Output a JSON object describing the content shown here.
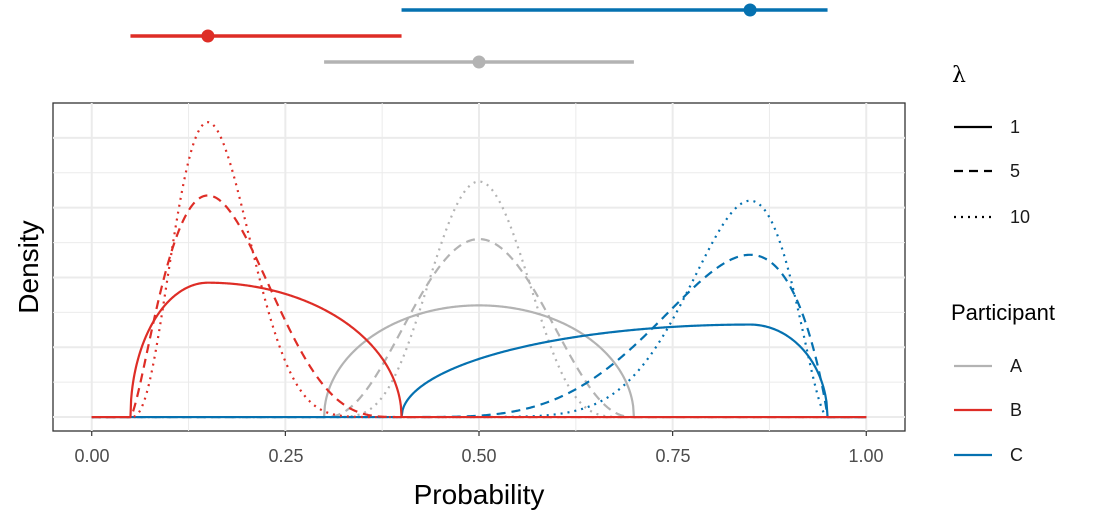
{
  "chart_data": {
    "type": "line",
    "xlabel": "Probability",
    "ylabel": "Density",
    "xlim": [
      -0.05,
      1.05
    ],
    "ylim": [
      -0.4,
      9.0
    ],
    "x_ticks": [
      "0.00",
      "0.25",
      "0.50",
      "0.75",
      "1.00"
    ],
    "x_tick_values": [
      0,
      0.25,
      0.5,
      0.75,
      1.0
    ],
    "y_ticks_shown": false,
    "grid": true,
    "participants": [
      {
        "name": "A",
        "color": "#b3b3b3",
        "min": 0.3,
        "mode": 0.5,
        "max": 0.7
      },
      {
        "name": "B",
        "color": "#de2d26",
        "min": 0.05,
        "mode": 0.15,
        "max": 0.4
      },
      {
        "name": "C",
        "color": "#0571b0",
        "min": 0.4,
        "mode": 0.85,
        "max": 0.95
      }
    ],
    "lambda_levels": [
      {
        "label": "1",
        "dash": "solid"
      },
      {
        "label": "5",
        "dash": "dashed"
      },
      {
        "label": "10",
        "dash": "dotted"
      }
    ],
    "legend": {
      "lambda_title": "λ",
      "participant_title": "Participant",
      "position": "right"
    }
  }
}
